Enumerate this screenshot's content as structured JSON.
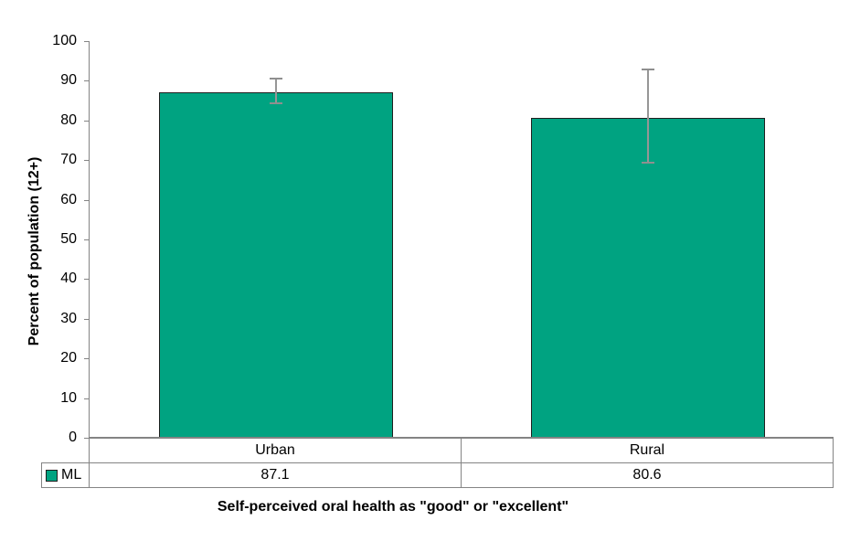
{
  "chart_data": {
    "type": "bar",
    "title": "Self-perceived oral health as \"good\" or \"excellent\"",
    "ylabel": "Percent of population (12+)",
    "xlabel": "",
    "categories": [
      "Urban",
      "Rural"
    ],
    "series": [
      {
        "name": "ML",
        "values": [
          87.1,
          80.6
        ],
        "color": "#00A381"
      }
    ],
    "error_bars": [
      {
        "low": 84.4,
        "high": 90.5
      },
      {
        "low": 69.3,
        "high": 92.9
      }
    ],
    "ylim": [
      0,
      100
    ],
    "ytick_step": 10,
    "grid": false,
    "legend_position": "table-left"
  },
  "colors": {
    "bar_fill": "#00A381",
    "bar_border": "#1f1f1f",
    "axis_line": "#848484",
    "error_bar": "#969696",
    "text": "#000000"
  }
}
